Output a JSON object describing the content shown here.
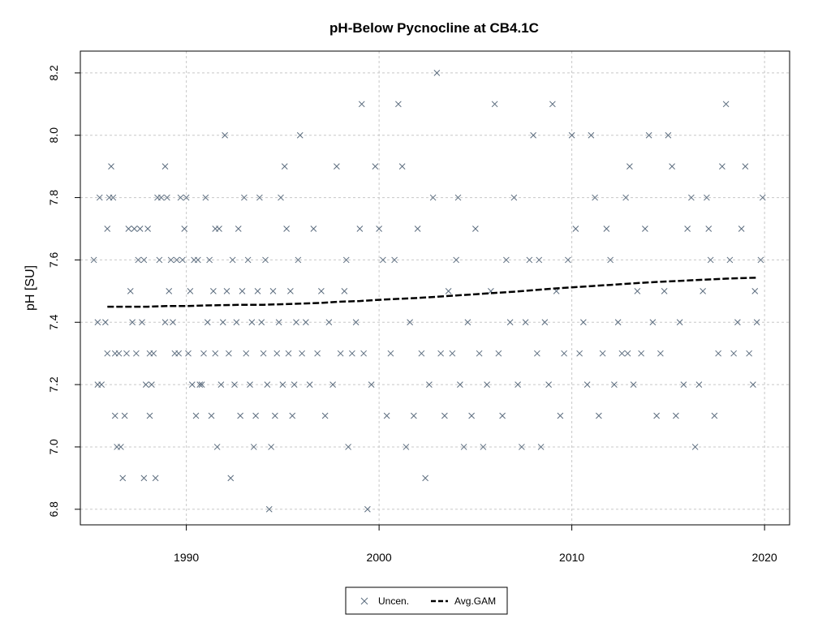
{
  "colors": {
    "points": "#5a6b7d",
    "gam": "#000000",
    "grid": "#c8c8c8",
    "frame": "#000000"
  },
  "chart_data": {
    "type": "scatter",
    "title": "pH-Below Pycnocline at CB4.1C",
    "xlabel": "",
    "ylabel": "pH [SU]",
    "xlim": [
      1984.5,
      2021.3
    ],
    "ylim": [
      6.75,
      8.27
    ],
    "xticks": [
      1990,
      2000,
      2010,
      2020
    ],
    "xtick_labels": [
      "1990",
      "2000",
      "2010",
      "2020"
    ],
    "yticks": [
      6.8,
      7.0,
      7.2,
      7.4,
      7.6,
      7.8,
      8.0,
      8.2
    ],
    "ytick_labels": [
      "6.8",
      "7.0",
      "7.2",
      "7.4",
      "7.6",
      "7.8",
      "8.0",
      "8.2"
    ],
    "grid": true,
    "legend_position": "bottom-center",
    "series": [
      {
        "name": "Uncen.",
        "marker": "x",
        "points": [
          [
            1985.2,
            7.6
          ],
          [
            1985.4,
            7.4
          ],
          [
            1985.4,
            7.2
          ],
          [
            1985.5,
            7.8
          ],
          [
            1985.6,
            7.2
          ],
          [
            1985.8,
            7.4
          ],
          [
            1985.9,
            7.3
          ],
          [
            1985.9,
            7.7
          ],
          [
            1986.0,
            7.8
          ],
          [
            1986.1,
            7.9
          ],
          [
            1986.2,
            7.8
          ],
          [
            1986.3,
            7.3
          ],
          [
            1986.3,
            7.1
          ],
          [
            1986.4,
            7.0
          ],
          [
            1986.5,
            7.3
          ],
          [
            1986.6,
            7.0
          ],
          [
            1986.7,
            6.9
          ],
          [
            1986.8,
            7.1
          ],
          [
            1986.9,
            7.3
          ],
          [
            1987.1,
            7.5
          ],
          [
            1987.2,
            7.4
          ],
          [
            1987.3,
            7.7
          ],
          [
            1987.4,
            7.3
          ],
          [
            1987.5,
            7.6
          ],
          [
            1987.6,
            7.7
          ],
          [
            1987.7,
            7.4
          ],
          [
            1987.8,
            6.9
          ],
          [
            1987.8,
            7.6
          ],
          [
            1987.9,
            7.2
          ],
          [
            1988.0,
            7.7
          ],
          [
            1988.1,
            7.1
          ],
          [
            1988.1,
            7.3
          ],
          [
            1988.2,
            7.2
          ],
          [
            1988.3,
            7.3
          ],
          [
            1988.4,
            6.9
          ],
          [
            1988.5,
            7.8
          ],
          [
            1988.6,
            7.6
          ],
          [
            1988.7,
            7.8
          ],
          [
            1988.9,
            7.9
          ],
          [
            1988.9,
            7.4
          ],
          [
            1989.0,
            7.8
          ],
          [
            1989.1,
            7.5
          ],
          [
            1989.2,
            7.6
          ],
          [
            1989.3,
            7.4
          ],
          [
            1989.4,
            7.3
          ],
          [
            1989.5,
            7.6
          ],
          [
            1989.6,
            7.3
          ],
          [
            1989.7,
            7.8
          ],
          [
            1989.8,
            7.6
          ],
          [
            1989.9,
            7.7
          ],
          [
            1990.0,
            7.8
          ],
          [
            1990.1,
            7.3
          ],
          [
            1990.2,
            7.5
          ],
          [
            1990.3,
            7.2
          ],
          [
            1990.4,
            7.6
          ],
          [
            1990.5,
            7.1
          ],
          [
            1990.6,
            7.6
          ],
          [
            1990.7,
            7.2
          ],
          [
            1990.8,
            7.2
          ],
          [
            1990.9,
            7.3
          ],
          [
            1991.0,
            7.8
          ],
          [
            1991.1,
            7.4
          ],
          [
            1991.2,
            7.6
          ],
          [
            1991.3,
            7.1
          ],
          [
            1991.4,
            7.5
          ],
          [
            1991.5,
            7.3
          ],
          [
            1991.6,
            7.0
          ],
          [
            1991.7,
            7.7
          ],
          [
            1991.8,
            7.2
          ],
          [
            1991.9,
            7.4
          ],
          [
            1992.0,
            8.0
          ],
          [
            1992.1,
            7.5
          ],
          [
            1992.2,
            7.3
          ],
          [
            1992.3,
            6.9
          ],
          [
            1992.4,
            7.6
          ],
          [
            1992.5,
            7.2
          ],
          [
            1992.6,
            7.4
          ],
          [
            1992.7,
            7.7
          ],
          [
            1992.8,
            7.1
          ],
          [
            1992.9,
            7.5
          ],
          [
            1993.0,
            7.8
          ],
          [
            1993.1,
            7.3
          ],
          [
            1993.2,
            7.6
          ],
          [
            1993.3,
            7.2
          ],
          [
            1993.4,
            7.4
          ],
          [
            1993.5,
            7.0
          ],
          [
            1993.6,
            7.1
          ],
          [
            1993.7,
            7.5
          ],
          [
            1993.8,
            7.8
          ],
          [
            1993.9,
            7.4
          ],
          [
            1994.0,
            7.3
          ],
          [
            1994.1,
            7.6
          ],
          [
            1994.2,
            7.2
          ],
          [
            1994.3,
            6.8
          ],
          [
            1994.4,
            7.0
          ],
          [
            1994.5,
            7.5
          ],
          [
            1994.6,
            7.1
          ],
          [
            1994.7,
            7.3
          ],
          [
            1994.8,
            7.4
          ],
          [
            1994.9,
            7.8
          ],
          [
            1995.0,
            7.2
          ],
          [
            1995.1,
            7.9
          ],
          [
            1995.2,
            7.7
          ],
          [
            1995.3,
            7.3
          ],
          [
            1995.4,
            7.5
          ],
          [
            1995.5,
            7.1
          ],
          [
            1995.6,
            7.2
          ],
          [
            1995.7,
            7.4
          ],
          [
            1995.8,
            7.6
          ],
          [
            1995.9,
            8.0
          ],
          [
            1996.0,
            7.3
          ],
          [
            1996.2,
            7.4
          ],
          [
            1996.4,
            7.2
          ],
          [
            1996.6,
            7.7
          ],
          [
            1996.8,
            7.3
          ],
          [
            1997.0,
            7.5
          ],
          [
            1997.2,
            7.1
          ],
          [
            1997.4,
            7.4
          ],
          [
            1997.6,
            7.2
          ],
          [
            1997.8,
            7.9
          ],
          [
            1998.0,
            7.3
          ],
          [
            1998.2,
            7.5
          ],
          [
            1998.4,
            7.0
          ],
          [
            1998.6,
            7.3
          ],
          [
            1998.8,
            7.4
          ],
          [
            1999.0,
            7.7
          ],
          [
            1999.1,
            8.1
          ],
          [
            1999.2,
            7.3
          ],
          [
            1999.4,
            6.8
          ],
          [
            1999.6,
            7.2
          ],
          [
            1999.8,
            7.9
          ],
          [
            2000.0,
            7.7
          ],
          [
            2000.2,
            7.6
          ],
          [
            2000.4,
            7.1
          ],
          [
            2000.6,
            7.3
          ],
          [
            2000.8,
            7.6
          ],
          [
            2001.0,
            8.1
          ],
          [
            2001.2,
            7.9
          ],
          [
            2001.4,
            7.0
          ],
          [
            2001.6,
            7.4
          ],
          [
            2001.8,
            7.1
          ],
          [
            2002.0,
            7.7
          ],
          [
            2002.2,
            7.3
          ],
          [
            2002.4,
            6.9
          ],
          [
            2002.6,
            7.2
          ],
          [
            2002.8,
            7.8
          ],
          [
            2003.0,
            8.2
          ],
          [
            2003.2,
            7.3
          ],
          [
            2003.4,
            7.1
          ],
          [
            2003.6,
            7.5
          ],
          [
            2003.8,
            7.3
          ],
          [
            2004.0,
            7.6
          ],
          [
            2004.2,
            7.2
          ],
          [
            2004.4,
            7.0
          ],
          [
            2004.6,
            7.4
          ],
          [
            2004.8,
            7.1
          ],
          [
            2005.0,
            7.7
          ],
          [
            2005.2,
            7.3
          ],
          [
            2005.4,
            7.0
          ],
          [
            2005.6,
            7.2
          ],
          [
            2005.8,
            7.5
          ],
          [
            2006.0,
            8.1
          ],
          [
            2006.2,
            7.3
          ],
          [
            2006.4,
            7.1
          ],
          [
            2006.6,
            7.6
          ],
          [
            2006.8,
            7.4
          ],
          [
            2007.0,
            7.8
          ],
          [
            2007.2,
            7.2
          ],
          [
            2007.4,
            7.0
          ],
          [
            2007.6,
            7.4
          ],
          [
            2007.8,
            7.6
          ],
          [
            2008.0,
            8.0
          ],
          [
            2008.2,
            7.3
          ],
          [
            2008.4,
            7.0
          ],
          [
            2008.6,
            7.4
          ],
          [
            2008.8,
            7.2
          ],
          [
            2009.0,
            8.1
          ],
          [
            2009.2,
            7.5
          ],
          [
            2009.4,
            7.1
          ],
          [
            2009.6,
            7.3
          ],
          [
            2009.8,
            7.6
          ],
          [
            2010.0,
            8.0
          ],
          [
            2010.2,
            7.7
          ],
          [
            2010.4,
            7.3
          ],
          [
            2010.6,
            7.4
          ],
          [
            2010.8,
            7.2
          ],
          [
            2011.0,
            8.0
          ],
          [
            2011.2,
            7.8
          ],
          [
            2011.4,
            7.1
          ],
          [
            2011.6,
            7.3
          ],
          [
            2011.8,
            7.7
          ],
          [
            2012.0,
            7.6
          ],
          [
            2012.2,
            7.2
          ],
          [
            2012.4,
            7.4
          ],
          [
            2012.6,
            7.3
          ],
          [
            2012.8,
            7.8
          ],
          [
            2013.0,
            7.9
          ],
          [
            2013.2,
            7.2
          ],
          [
            2013.4,
            7.5
          ],
          [
            2013.6,
            7.3
          ],
          [
            2013.8,
            7.7
          ],
          [
            2014.0,
            8.0
          ],
          [
            2014.2,
            7.4
          ],
          [
            2014.4,
            7.1
          ],
          [
            2014.6,
            7.3
          ],
          [
            2014.8,
            7.5
          ],
          [
            2015.0,
            8.0
          ],
          [
            2015.2,
            7.9
          ],
          [
            2015.4,
            7.1
          ],
          [
            2015.6,
            7.4
          ],
          [
            2015.8,
            7.2
          ],
          [
            2016.0,
            7.7
          ],
          [
            2016.2,
            7.8
          ],
          [
            2016.4,
            7.0
          ],
          [
            2016.6,
            7.2
          ],
          [
            2016.8,
            7.5
          ],
          [
            2017.0,
            7.8
          ],
          [
            2017.2,
            7.6
          ],
          [
            2017.4,
            7.1
          ],
          [
            2017.6,
            7.3
          ],
          [
            2017.8,
            7.9
          ],
          [
            2018.0,
            8.1
          ],
          [
            2018.2,
            7.6
          ],
          [
            2018.4,
            7.3
          ],
          [
            2018.6,
            7.4
          ],
          [
            2018.8,
            7.7
          ],
          [
            2019.0,
            7.9
          ],
          [
            2019.2,
            7.3
          ],
          [
            2019.4,
            7.2
          ],
          [
            2019.6,
            7.4
          ],
          [
            2019.8,
            7.6
          ],
          [
            2019.9,
            7.8
          ],
          [
            2019.5,
            7.5
          ],
          [
            2017.1,
            7.7
          ],
          [
            2012.9,
            7.3
          ],
          [
            2008.3,
            7.6
          ],
          [
            2004.1,
            7.8
          ],
          [
            1998.3,
            7.6
          ],
          [
            1991.5,
            7.7
          ],
          [
            1987.0,
            7.7
          ]
        ]
      },
      {
        "name": "Avg.GAM",
        "type": "line",
        "points": [
          [
            1985.9,
            7.45
          ],
          [
            1987.0,
            7.45
          ],
          [
            1988.0,
            7.45
          ],
          [
            1989.0,
            7.452
          ],
          [
            1990.0,
            7.452
          ],
          [
            1991.0,
            7.454
          ],
          [
            1992.0,
            7.455
          ],
          [
            1993.0,
            7.456
          ],
          [
            1994.0,
            7.456
          ],
          [
            1995.0,
            7.458
          ],
          [
            1996.0,
            7.46
          ],
          [
            1997.0,
            7.462
          ],
          [
            1998.0,
            7.466
          ],
          [
            1999.0,
            7.468
          ],
          [
            2000.0,
            7.472
          ],
          [
            2001.0,
            7.475
          ],
          [
            2002.0,
            7.478
          ],
          [
            2003.0,
            7.482
          ],
          [
            2004.0,
            7.486
          ],
          [
            2005.0,
            7.49
          ],
          [
            2006.0,
            7.494
          ],
          [
            2007.0,
            7.498
          ],
          [
            2008.0,
            7.503
          ],
          [
            2009.0,
            7.508
          ],
          [
            2010.0,
            7.512
          ],
          [
            2011.0,
            7.516
          ],
          [
            2012.0,
            7.52
          ],
          [
            2013.0,
            7.524
          ],
          [
            2014.0,
            7.528
          ],
          [
            2015.0,
            7.531
          ],
          [
            2016.0,
            7.534
          ],
          [
            2017.0,
            7.537
          ],
          [
            2018.0,
            7.54
          ],
          [
            2019.0,
            7.542
          ],
          [
            2019.6,
            7.543
          ]
        ]
      }
    ]
  }
}
